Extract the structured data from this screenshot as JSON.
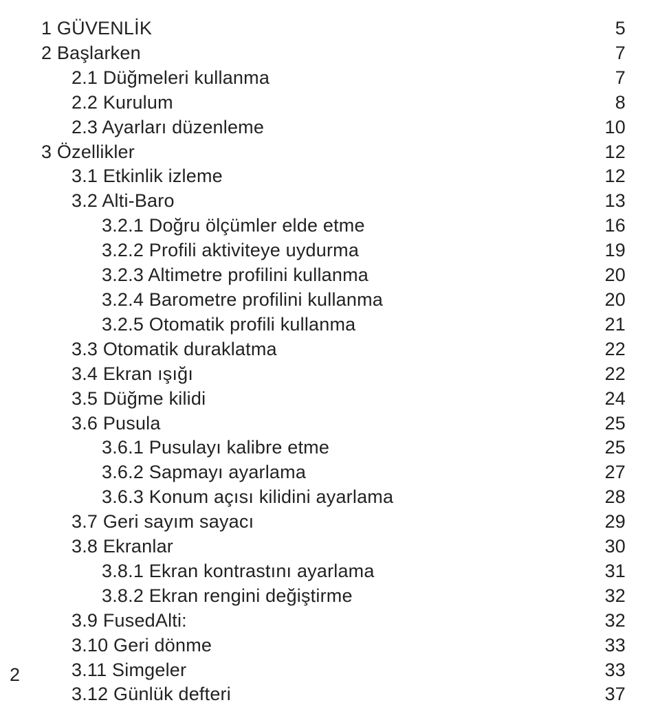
{
  "toc": [
    {
      "indent": 0,
      "title": "1 GÜVENLİK",
      "page": "5"
    },
    {
      "indent": 0,
      "title": "2 Başlarken",
      "page": "7"
    },
    {
      "indent": 1,
      "title": "2.1 Düğmeleri kullanma",
      "page": "7"
    },
    {
      "indent": 1,
      "title": "2.2 Kurulum",
      "page": "8"
    },
    {
      "indent": 1,
      "title": "2.3 Ayarları düzenleme",
      "page": "10"
    },
    {
      "indent": 0,
      "title": "3 Özellikler",
      "page": "12"
    },
    {
      "indent": 1,
      "title": "3.1 Etkinlik izleme",
      "page": "12"
    },
    {
      "indent": 1,
      "title": "3.2 Alti-Baro",
      "page": "13"
    },
    {
      "indent": 2,
      "title": "3.2.1 Doğru ölçümler elde etme",
      "page": "16"
    },
    {
      "indent": 2,
      "title": "3.2.2 Profili aktiviteye uydurma",
      "page": "19"
    },
    {
      "indent": 2,
      "title": "3.2.3 Altimetre profilini kullanma",
      "page": "20"
    },
    {
      "indent": 2,
      "title": "3.2.4 Barometre profilini kullanma",
      "page": "20"
    },
    {
      "indent": 2,
      "title": "3.2.5 Otomatik profili kullanma",
      "page": "21"
    },
    {
      "indent": 1,
      "title": "3.3 Otomatik duraklatma",
      "page": "22"
    },
    {
      "indent": 1,
      "title": "3.4 Ekran ışığı",
      "page": "22"
    },
    {
      "indent": 1,
      "title": "3.5 Düğme kilidi",
      "page": "24"
    },
    {
      "indent": 1,
      "title": "3.6 Pusula",
      "page": "25"
    },
    {
      "indent": 2,
      "title": "3.6.1 Pusulayı kalibre etme",
      "page": "25"
    },
    {
      "indent": 2,
      "title": "3.6.2 Sapmayı ayarlama",
      "page": "27"
    },
    {
      "indent": 2,
      "title": "3.6.3 Konum açısı kilidini ayarlama",
      "page": "28"
    },
    {
      "indent": 1,
      "title": "3.7 Geri sayım sayacı",
      "page": "29"
    },
    {
      "indent": 1,
      "title": "3.8 Ekranlar",
      "page": "30"
    },
    {
      "indent": 2,
      "title": "3.8.1 Ekran kontrastını ayarlama",
      "page": "31"
    },
    {
      "indent": 2,
      "title": "3.8.2 Ekran rengini değiştirme",
      "page": "32"
    },
    {
      "indent": 1,
      "title": "3.9 FusedAlti:",
      "page": "32"
    },
    {
      "indent": 1,
      "title": "3.10 Geri dönme",
      "page": "33"
    },
    {
      "indent": 1,
      "title": "3.11 Simgeler",
      "page": "33"
    },
    {
      "indent": 1,
      "title": "3.12 Günlük defteri",
      "page": "37"
    }
  ],
  "pageNumber": "2"
}
